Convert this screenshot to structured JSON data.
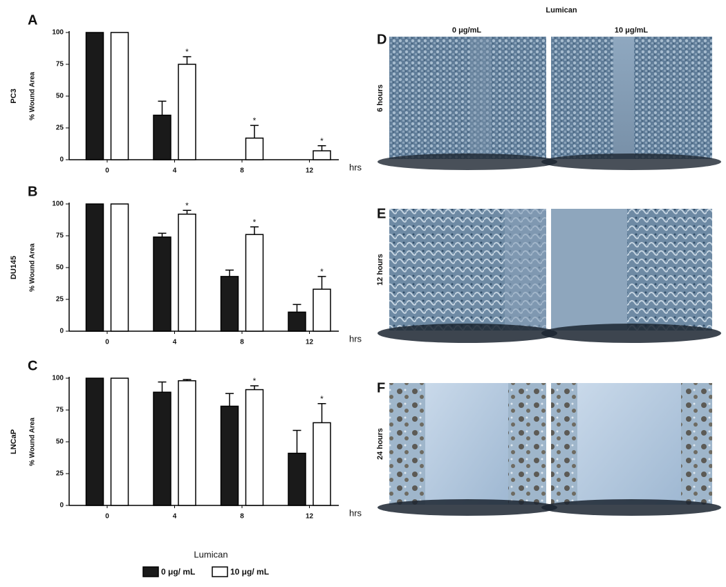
{
  "chart_data": [
    {
      "type": "bar",
      "panel": "A",
      "title": "PC3",
      "y_label": "% Wound Area",
      "x_label": "hrs",
      "categories": [
        "0",
        "4",
        "8",
        "12"
      ],
      "ylim": [
        0,
        100
      ],
      "yticks": [
        0,
        25,
        50,
        75,
        100
      ],
      "series": [
        {
          "name": "0 μg/ mL",
          "color": "#1a1a1a",
          "values": [
            100,
            35,
            0,
            0
          ],
          "errors": [
            null,
            11,
            null,
            null
          ],
          "significance": [
            null,
            null,
            null,
            null
          ]
        },
        {
          "name": "10 μg/ mL",
          "color": "#ffffff",
          "values": [
            100,
            75,
            17,
            7
          ],
          "errors": [
            null,
            6,
            10,
            4
          ],
          "significance": [
            null,
            "*",
            "*",
            "*"
          ]
        }
      ]
    },
    {
      "type": "bar",
      "panel": "B",
      "title": "DU145",
      "y_label": "% Wound Area",
      "x_label": "hrs",
      "categories": [
        "0",
        "4",
        "8",
        "12"
      ],
      "ylim": [
        0,
        100
      ],
      "yticks": [
        0,
        25,
        50,
        75,
        100
      ],
      "series": [
        {
          "name": "0 μg/ mL",
          "color": "#1a1a1a",
          "values": [
            100,
            74,
            43,
            15
          ],
          "errors": [
            null,
            3,
            5,
            6
          ],
          "significance": [
            null,
            null,
            null,
            null
          ]
        },
        {
          "name": "10 μg/ mL",
          "color": "#ffffff",
          "values": [
            100,
            92,
            76,
            33
          ],
          "errors": [
            null,
            3,
            6,
            10
          ],
          "significance": [
            null,
            "*",
            "*",
            "*"
          ]
        }
      ]
    },
    {
      "type": "bar",
      "panel": "C",
      "title": "LNCaP",
      "y_label": "% Wound Area",
      "x_label": "hrs",
      "categories": [
        "0",
        "4",
        "8",
        "12"
      ],
      "ylim": [
        0,
        100
      ],
      "yticks": [
        0,
        25,
        50,
        75,
        100
      ],
      "series": [
        {
          "name": "0 μg/ mL",
          "color": "#1a1a1a",
          "values": [
            100,
            89,
            78,
            41
          ],
          "errors": [
            null,
            8,
            10,
            18
          ],
          "significance": [
            null,
            null,
            null,
            null
          ]
        },
        {
          "name": "10 μg/ mL",
          "color": "#ffffff",
          "values": [
            100,
            98,
            91,
            65
          ],
          "errors": [
            null,
            1,
            3,
            15
          ],
          "significance": [
            null,
            null,
            "*",
            "*"
          ]
        }
      ]
    }
  ],
  "legend": {
    "title": "Lumican"
  },
  "images": {
    "title": "Lumican",
    "columns": [
      "0 μg/mL",
      "10 μg/mL"
    ],
    "rows": [
      {
        "panel": "D",
        "label": "6 hours"
      },
      {
        "panel": "E",
        "label": "12 hours"
      },
      {
        "panel": "F",
        "label": "24 hours"
      }
    ]
  }
}
